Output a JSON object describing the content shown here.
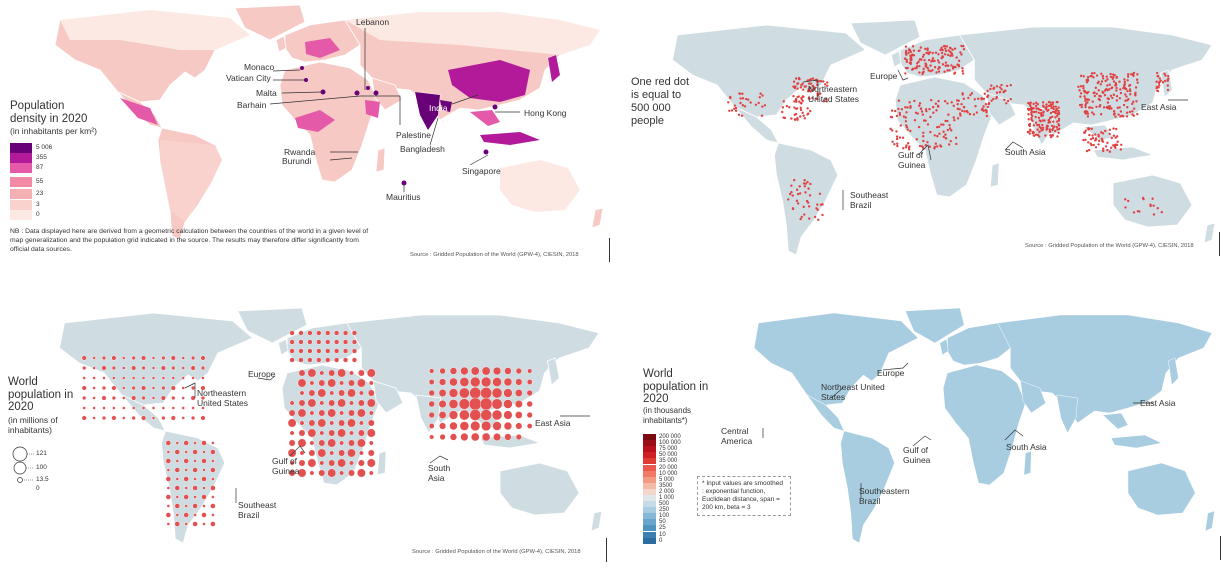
{
  "colors": {
    "land_gray": "#d0dde3",
    "dot_red": "#e04141",
    "circle_red": "#e35050",
    "density_scale": [
      "#680078",
      "#b21a9a",
      "#e45aa8",
      "#f28aa6",
      "#f5b0b3",
      "#f9d2cd",
      "#fde9e4"
    ],
    "kde_ramp": [
      "#7a0b12",
      "#9b0d16",
      "#b8101c",
      "#cf1e24",
      "#e03a34",
      "#ea5a4c",
      "#f07a66",
      "#f39a84",
      "#f6bba8",
      "#f4d6cb",
      "#dfe7ea",
      "#c5dbe7",
      "#a8cce0",
      "#87b9d6",
      "#6aa6cb",
      "#4f93bf",
      "#3a80b1",
      "#2a6d9e"
    ]
  },
  "panel_density": {
    "title": "Population density in 2020",
    "subtitle": "(in inhabitants per km²)",
    "legend": [
      "5 006",
      "355",
      "87",
      "55",
      "23",
      "3",
      "0"
    ],
    "labels": {
      "lebanon": "Lebanon",
      "monaco": "Monaco",
      "vatican": "Vatican City",
      "malta": "Malta",
      "barhain": "Barhain",
      "india": "India",
      "hongkong": "Hong Kong",
      "palestine": "Palestine",
      "bangladesh": "Bangladesh",
      "rwanda": "Rwanda",
      "burundi": "Burundi",
      "singapore": "Singapore",
      "mauritius": "Mauritius"
    },
    "nb": "NB : Data displayed here are derived from a geometric calculation between the countries of the world in a given level of map generalization and the population grid indicated in the source. The results may therefore differ significantly from official data sources.",
    "source": "Source : Gridded Population of the World (GPW-4), CIESIN, 2018"
  },
  "panel_dots": {
    "caption": "One red dot is equal to 500 000 people",
    "labels": {
      "northeastern_us": "Northeastern United States",
      "europe": "Europe",
      "east_asia": "East Asia",
      "gulf_guinea": "Gulf of Guinea",
      "south_asia": "South Asia",
      "southeast_brazil": "Southeast Brazil"
    },
    "source": "Source : Gridded Population of the World (GPW-4), CIESIN, 2018"
  },
  "panel_circles": {
    "title": "World population in 2020",
    "subtitle": "(in millions of inhabitants)",
    "legend": [
      "121",
      "100",
      "13.5",
      "0"
    ],
    "labels": {
      "europe": "Europe",
      "northeastern_us": "Northeastern United States",
      "east_asia": "East Asia",
      "gulf_guinea": "Gulf of Guinea",
      "south_asia": "South Asia",
      "southeast_brazil": "Southeast Brazil"
    },
    "source": "Source : Gridded Population of the World (GPW-4), CIESIN, 2018"
  },
  "panel_smoothed": {
    "title": "World population in 2020",
    "subtitle": "(in thousands inhabitants*)",
    "legend": [
      "200 000",
      "100 000",
      "75 000",
      "50 000",
      "35 000",
      "20 000",
      "10 000",
      "5 000",
      "3500",
      "2 000",
      "1 000",
      "500",
      "250",
      "100",
      "50",
      "25",
      "10",
      "0"
    ],
    "note": "* Input values are smoothed : exponential function, Euclidean distance, span = 200 km, beta = 3",
    "labels": {
      "europe": "Europe",
      "northeast_us": "Northeast United States",
      "central_america": "Central America",
      "east_asia": "East Asia",
      "gulf_guinea": "Gulf of Guinea",
      "south_asia": "South Asia",
      "southeastern_brazil": "Southeastern Brazil"
    }
  }
}
